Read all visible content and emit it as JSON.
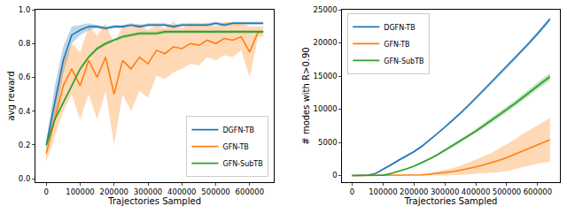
{
  "chart_data": [
    {
      "type": "line",
      "y_label": "avg reward",
      "x_label": "Trajectories Sampled",
      "x": [
        0,
        25000,
        50000,
        75000,
        100000,
        125000,
        150000,
        175000,
        200000,
        225000,
        250000,
        275000,
        300000,
        325000,
        350000,
        375000,
        400000,
        425000,
        450000,
        475000,
        500000,
        525000,
        550000,
        575000,
        600000,
        625000,
        640000
      ],
      "xlim": [
        -32000,
        672000
      ],
      "xticks": [
        0,
        100000,
        200000,
        300000,
        400000,
        500000,
        600000
      ],
      "ylim": [
        -0.02,
        1.0
      ],
      "yticks": [
        {
          "value": 0,
          "label": "0.0"
        },
        0.2,
        0.4,
        0.6,
        0.8,
        {
          "value": 1.0,
          "label": "1.0"
        }
      ],
      "grid": false,
      "legend": "lower right",
      "series": [
        {
          "name": "DGFN-TB",
          "color": "#1f77b4",
          "values": [
            0.2,
            0.45,
            0.7,
            0.85,
            0.88,
            0.9,
            0.9,
            0.89,
            0.9,
            0.9,
            0.91,
            0.9,
            0.91,
            0.91,
            0.91,
            0.9,
            0.91,
            0.91,
            0.91,
            0.91,
            0.92,
            0.91,
            0.92,
            0.92,
            0.92,
            0.92,
            0.92
          ],
          "std": [
            0.02,
            0.1,
            0.08,
            0.05,
            0.03,
            0.02,
            0.01,
            0.01,
            0.01,
            0.01,
            0.01,
            0.01,
            0.01,
            0.01,
            0.01,
            0.01,
            0.01,
            0.01,
            0.01,
            0.01,
            0.01,
            0.01,
            0.01,
            0.01,
            0.01,
            0.01,
            0.01
          ]
        },
        {
          "name": "GFN-TB",
          "color": "#ff7f0e",
          "values": [
            0.15,
            0.35,
            0.55,
            0.65,
            0.55,
            0.7,
            0.6,
            0.72,
            0.5,
            0.7,
            0.65,
            0.72,
            0.68,
            0.76,
            0.74,
            0.78,
            0.77,
            0.8,
            0.79,
            0.82,
            0.8,
            0.83,
            0.82,
            0.84,
            0.75,
            0.87,
            0.87
          ],
          "std": [
            0.05,
            0.1,
            0.15,
            0.15,
            0.2,
            0.2,
            0.25,
            0.2,
            0.3,
            0.2,
            0.25,
            0.2,
            0.2,
            0.15,
            0.15,
            0.15,
            0.12,
            0.12,
            0.12,
            0.1,
            0.1,
            0.1,
            0.1,
            0.08,
            0.15,
            0.03,
            0.03
          ]
        },
        {
          "name": "GFN-SubTB",
          "color": "#2ca02c",
          "values": [
            0.2,
            0.35,
            0.45,
            0.55,
            0.65,
            0.72,
            0.77,
            0.8,
            0.82,
            0.84,
            0.85,
            0.86,
            0.86,
            0.86,
            0.87,
            0.87,
            0.87,
            0.87,
            0.87,
            0.87,
            0.87,
            0.87,
            0.87,
            0.87,
            0.87,
            0.87,
            0.87
          ],
          "std": [
            0.01,
            0.01,
            0.01,
            0.01,
            0.01,
            0.01,
            0.01,
            0.01,
            0.01,
            0.01,
            0.01,
            0.01,
            0.01,
            0.01,
            0.01,
            0.01,
            0.01,
            0.01,
            0.01,
            0.01,
            0.01,
            0.01,
            0.01,
            0.01,
            0.01,
            0.01,
            0.01
          ]
        }
      ]
    },
    {
      "type": "line",
      "y_label": "# modes with R>0.90",
      "x_label": "Trajectories Sampled",
      "x": [
        0,
        25000,
        50000,
        75000,
        100000,
        125000,
        150000,
        175000,
        200000,
        225000,
        250000,
        275000,
        300000,
        325000,
        350000,
        375000,
        400000,
        425000,
        450000,
        475000,
        500000,
        525000,
        550000,
        575000,
        600000,
        625000,
        640000
      ],
      "xlim": [
        -32000,
        672000
      ],
      "xticks": [
        0,
        100000,
        200000,
        300000,
        400000,
        500000,
        600000
      ],
      "ylim": [
        -1000,
        25000
      ],
      "yticks": [
        0,
        5000,
        10000,
        15000,
        20000,
        25000
      ],
      "grid": false,
      "legend": "upper left",
      "series": [
        {
          "name": "DGFN-TB",
          "color": "#1f77b4",
          "values": [
            0,
            0,
            50,
            300,
            900,
            1600,
            2300,
            2900,
            3600,
            4400,
            5300,
            6300,
            7300,
            8300,
            9400,
            10500,
            11700,
            12800,
            14000,
            15200,
            16400,
            17600,
            18800,
            20100,
            21400,
            22700,
            23600
          ],
          "std": [
            0,
            0,
            20,
            50,
            100,
            150,
            150,
            150,
            150,
            200,
            200,
            200,
            200,
            200,
            250,
            250,
            250,
            250,
            250,
            300,
            300,
            300,
            300,
            300,
            300,
            300,
            300
          ]
        },
        {
          "name": "GFN-TB",
          "color": "#ff7f0e",
          "values": [
            0,
            0,
            0,
            0,
            0,
            0,
            0,
            20,
            50,
            100,
            200,
            300,
            450,
            600,
            800,
            1000,
            1300,
            1600,
            1900,
            2300,
            2700,
            3200,
            3700,
            4200,
            4700,
            5100,
            5400
          ],
          "std": [
            0,
            0,
            0,
            0,
            0,
            0,
            0,
            20,
            50,
            100,
            200,
            300,
            400,
            500,
            700,
            900,
            1100,
            1300,
            1500,
            1800,
            2000,
            2200,
            2500,
            2700,
            2900,
            3100,
            3300
          ]
        },
        {
          "name": "GFN-SubTB",
          "color": "#2ca02c",
          "values": [
            0,
            0,
            0,
            0,
            50,
            300,
            600,
            1000,
            1400,
            1900,
            2500,
            3100,
            3800,
            4500,
            5200,
            5900,
            6700,
            7500,
            8300,
            9100,
            9900,
            10800,
            11700,
            12600,
            13600,
            14400,
            14900
          ],
          "std": [
            0,
            0,
            0,
            0,
            20,
            50,
            80,
            100,
            120,
            150,
            180,
            200,
            220,
            250,
            280,
            300,
            320,
            350,
            380,
            400,
            420,
            450,
            480,
            500,
            520,
            550,
            560
          ]
        }
      ]
    }
  ]
}
